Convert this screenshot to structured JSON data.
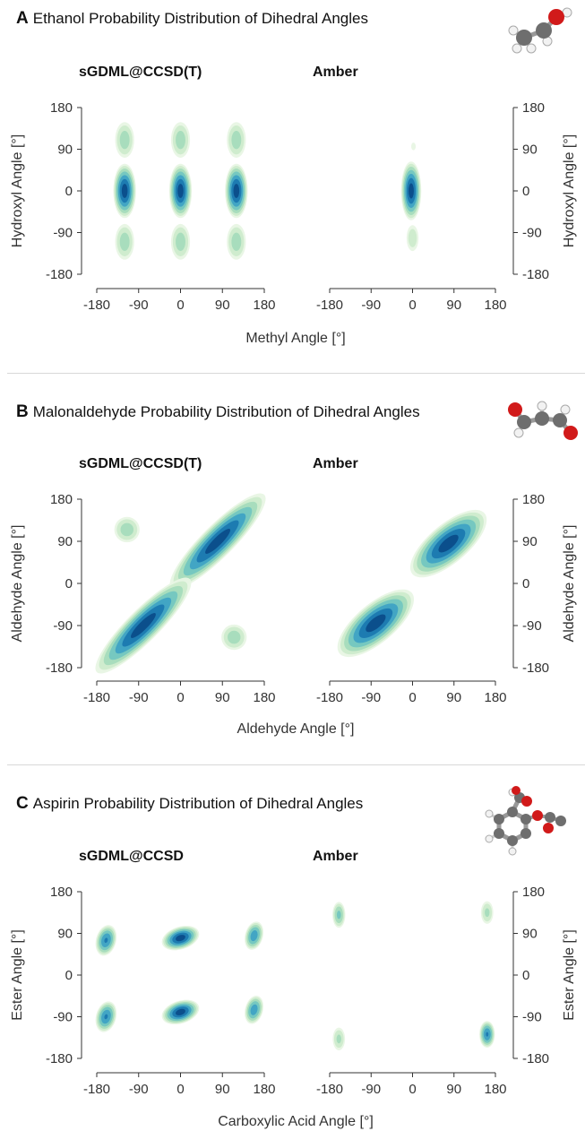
{
  "palette": {
    "levels": [
      "#e8f5e4",
      "#cdebcc",
      "#a5dcbc",
      "#73c6c0",
      "#3fa3c4",
      "#1b78b0",
      "#0b4d8a"
    ],
    "axis": "#333333",
    "text": "#333333"
  },
  "chart_data": [
    {
      "type": "heatmap",
      "panel_letter": "A",
      "molecule": "Ethanol",
      "title_rest": "Probability Distribution of Dihedral Angles",
      "subplot_titles": [
        "sGDML@CCSD(T)",
        "Amber"
      ],
      "xlabel": "Methyl Angle [°]",
      "ylabel": "Hydroxyl Angle [°]",
      "xlim": [
        -180,
        180
      ],
      "ylim": [
        -180,
        180
      ],
      "xticks": [
        "-180",
        "-90",
        "0",
        "90",
        "180"
      ],
      "yticks": [
        "180",
        "90",
        "0",
        "-90",
        "-180"
      ],
      "grid": false,
      "series": [
        {
          "name": "sGDML@CCSD(T)",
          "modes": [
            {
              "x": -120,
              "y": 0,
              "sx": 10,
              "sy": 24,
              "rot": 0,
              "peak": 1.0
            },
            {
              "x": 0,
              "y": 0,
              "sx": 10,
              "sy": 24,
              "rot": 0,
              "peak": 1.0
            },
            {
              "x": 120,
              "y": 0,
              "sx": 10,
              "sy": 24,
              "rot": 0,
              "peak": 1.0
            },
            {
              "x": -120,
              "y": 110,
              "sx": 9,
              "sy": 17,
              "rot": 0,
              "peak": 0.5
            },
            {
              "x": 0,
              "y": 110,
              "sx": 9,
              "sy": 17,
              "rot": 0,
              "peak": 0.5
            },
            {
              "x": 120,
              "y": 110,
              "sx": 9,
              "sy": 17,
              "rot": 0,
              "peak": 0.5
            },
            {
              "x": -120,
              "y": -110,
              "sx": 9,
              "sy": 17,
              "rot": 0,
              "peak": 0.5
            },
            {
              "x": 0,
              "y": -110,
              "sx": 9,
              "sy": 17,
              "rot": 0,
              "peak": 0.5
            },
            {
              "x": 120,
              "y": -110,
              "sx": 9,
              "sy": 17,
              "rot": 0,
              "peak": 0.5
            }
          ]
        },
        {
          "name": "Amber",
          "modes": [
            {
              "x": -3,
              "y": 0,
              "sx": 9,
              "sy": 26,
              "rot": 0,
              "peak": 1.0
            },
            {
              "x": 0,
              "y": -102,
              "sx": 6,
              "sy": 13,
              "rot": 0,
              "peak": 0.38
            },
            {
              "x": 2,
              "y": 96,
              "sx": 3,
              "sy": 5,
              "rot": 0,
              "peak": 0.2
            }
          ]
        }
      ]
    },
    {
      "type": "heatmap",
      "panel_letter": "B",
      "molecule": "Malonaldehyde",
      "title_rest": "Probability Distribution of Dihedral Angles",
      "subplot_titles": [
        "sGDML@CCSD(T)",
        "Amber"
      ],
      "xlabel": "Aldehyde Angle [°]",
      "ylabel": "Aldehyde Angle [°]",
      "xlim": [
        -180,
        180
      ],
      "ylim": [
        -180,
        180
      ],
      "xticks": [
        "-180",
        "-90",
        "0",
        "90",
        "180"
      ],
      "yticks": [
        "180",
        "90",
        "0",
        "-90",
        "-180"
      ],
      "grid": false,
      "series": [
        {
          "name": "sGDML@CCSD(T)",
          "modes": [
            {
              "x": 80,
              "y": 90,
              "sx": 58,
              "sy": 14,
              "rot": -45,
              "peak": 1.0
            },
            {
              "x": -80,
              "y": -90,
              "sx": 58,
              "sy": 14,
              "rot": -45,
              "peak": 1.0
            },
            {
              "x": -115,
              "y": 115,
              "sx": 12,
              "sy": 12,
              "rot": 0,
              "peak": 0.5
            },
            {
              "x": 115,
              "y": -115,
              "sx": 12,
              "sy": 12,
              "rot": 0,
              "peak": 0.5
            }
          ]
        },
        {
          "name": "Amber",
          "modes": [
            {
              "x": 78,
              "y": 85,
              "sx": 42,
              "sy": 17,
              "rot": -40,
              "peak": 1.0
            },
            {
              "x": -80,
              "y": -85,
              "sx": 42,
              "sy": 17,
              "rot": -40,
              "peak": 1.0
            }
          ]
        }
      ]
    },
    {
      "type": "heatmap",
      "panel_letter": "C",
      "molecule": "Aspirin",
      "title_rest": "Probability Distribution of Dihedral Angles",
      "subplot_titles": [
        "sGDML@CCSD",
        "Amber"
      ],
      "xlabel": "Carboxylic Acid Angle [°]",
      "ylabel": "Ester Angle [°]",
      "xlim": [
        -180,
        180
      ],
      "ylim": [
        -180,
        180
      ],
      "xticks": [
        "-180",
        "-90",
        "0",
        "90",
        "180"
      ],
      "yticks": [
        "180",
        "90",
        "0",
        "-90",
        "-180"
      ],
      "grid": false,
      "series": [
        {
          "name": "sGDML@CCSD",
          "modes": [
            {
              "x": -160,
              "y": 75,
              "sx": 9,
              "sy": 14,
              "rot": 15,
              "peak": 0.85
            },
            {
              "x": -160,
              "y": -90,
              "sx": 9,
              "sy": 14,
              "rot": 15,
              "peak": 0.85
            },
            {
              "x": 0,
              "y": 80,
              "sx": 17,
              "sy": 10,
              "rot": -18,
              "peak": 1.0
            },
            {
              "x": 0,
              "y": -80,
              "sx": 17,
              "sy": 10,
              "rot": -18,
              "peak": 1.0
            },
            {
              "x": 158,
              "y": 85,
              "sx": 8,
              "sy": 13,
              "rot": 15,
              "peak": 0.8
            },
            {
              "x": 158,
              "y": -75,
              "sx": 8,
              "sy": 13,
              "rot": 15,
              "peak": 0.8
            }
          ]
        },
        {
          "name": "Amber",
          "modes": [
            {
              "x": -160,
              "y": 130,
              "sx": 6,
              "sy": 12,
              "rot": 0,
              "peak": 0.6
            },
            {
              "x": -160,
              "y": -138,
              "sx": 6,
              "sy": 11,
              "rot": 0,
              "peak": 0.45
            },
            {
              "x": 162,
              "y": 135,
              "sx": 6,
              "sy": 11,
              "rot": 0,
              "peak": 0.45
            },
            {
              "x": 162,
              "y": -128,
              "sx": 7,
              "sy": 12,
              "rot": 0,
              "peak": 0.85
            }
          ]
        }
      ]
    }
  ],
  "molecules": [
    "ethanol-molecule-icon",
    "malonaldehyde-molecule-icon",
    "aspirin-molecule-icon"
  ]
}
